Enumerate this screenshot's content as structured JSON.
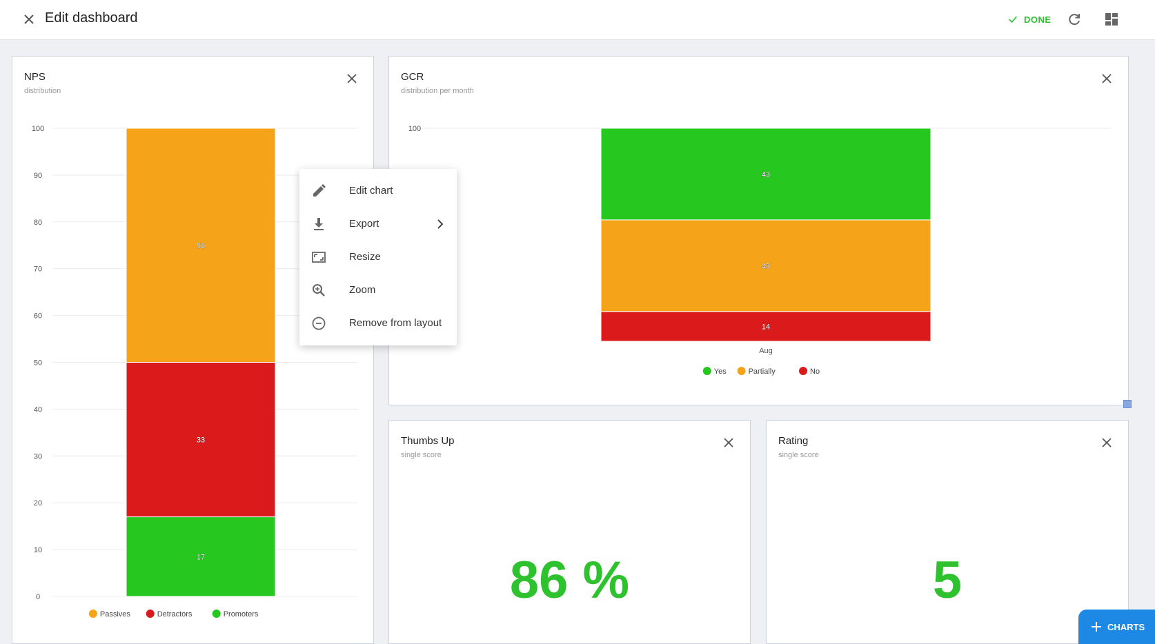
{
  "header": {
    "title": "Edit dashboard",
    "done_label": "DONE"
  },
  "cards": {
    "nps": {
      "title": "NPS",
      "subtitle": "distribution",
      "chart_data": {
        "type": "bar",
        "stacked": true,
        "categories": [
          ""
        ],
        "series": [
          {
            "name": "Promoters",
            "values": [
              17
            ],
            "color": "#26c71e"
          },
          {
            "name": "Detractors",
            "values": [
              33
            ],
            "color": "#db1b1b"
          },
          {
            "name": "Passives",
            "values": [
              50
            ],
            "color": "#f5a41a"
          }
        ],
        "legend_order": [
          "Passives",
          "Detractors",
          "Promoters"
        ],
        "yticks": [
          0,
          10,
          20,
          30,
          40,
          50,
          60,
          70,
          80,
          90,
          100
        ],
        "ylim": [
          0,
          100
        ],
        "grid": true,
        "legend": "bottom"
      }
    },
    "gcr": {
      "title": "GCR",
      "subtitle": "distribution per month",
      "chart_data": {
        "type": "bar",
        "stacked": true,
        "categories": [
          "Aug"
        ],
        "series": [
          {
            "name": "No",
            "values": [
              14
            ],
            "color": "#db1b1b"
          },
          {
            "name": "Partially",
            "values": [
              43
            ],
            "color": "#f5a41a"
          },
          {
            "name": "Yes",
            "values": [
              43
            ],
            "color": "#26c71e"
          }
        ],
        "legend_order": [
          "Yes",
          "Partially",
          "No"
        ],
        "yticks": [
          100
        ],
        "ylim": [
          0,
          100
        ],
        "grid": true,
        "legend": "bottom"
      }
    },
    "thumbs": {
      "title": "Thumbs Up",
      "subtitle": "single score",
      "value": "86 %"
    },
    "rating": {
      "title": "Rating",
      "subtitle": "single score",
      "value": "5"
    }
  },
  "context_menu": {
    "items": [
      {
        "label": "Edit chart",
        "icon": "pencil-icon"
      },
      {
        "label": "Export",
        "icon": "download-icon",
        "submenu": true
      },
      {
        "label": "Resize",
        "icon": "resize-icon"
      },
      {
        "label": "Zoom",
        "icon": "zoom-icon"
      },
      {
        "label": "Remove from layout",
        "icon": "minus-circle-icon"
      }
    ]
  },
  "fab": {
    "label": "CHARTS"
  },
  "colors": {
    "accent": "#1e88e5",
    "success": "#2ec32e"
  }
}
